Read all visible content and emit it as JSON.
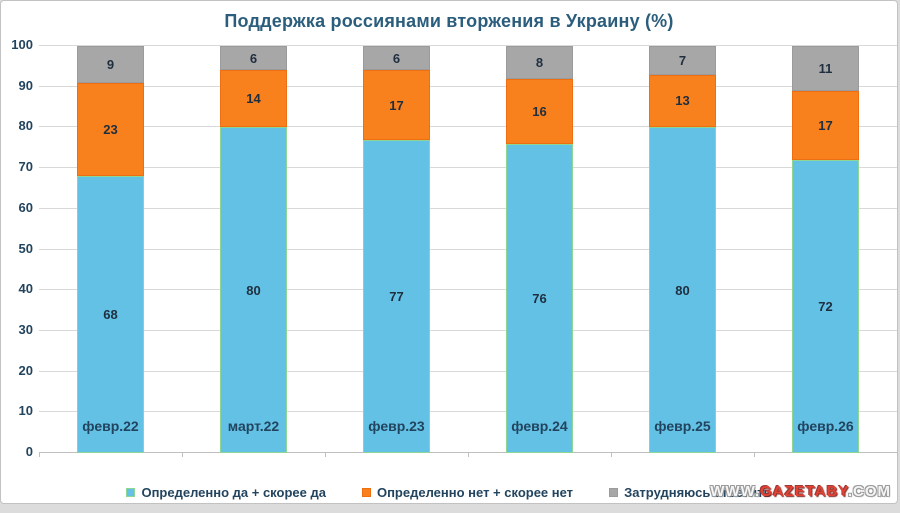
{
  "chart_data": {
    "type": "bar",
    "stacked": true,
    "title": "Поддержка россиянами вторжения в Украину (%)",
    "categories": [
      "февр.22",
      "март.22",
      "февр.23",
      "февр.24",
      "февр.25",
      "февр.26"
    ],
    "series": [
      {
        "name": "Определенно да + скорее да",
        "color": "#63c1e5",
        "border_color": "#8fd694",
        "values": [
          68,
          80,
          77,
          76,
          80,
          72
        ]
      },
      {
        "name": "Определенно нет + скорее нет",
        "color": "#f8801d",
        "border_color": "#ed6f12",
        "values": [
          23,
          14,
          17,
          16,
          13,
          17
        ]
      },
      {
        "name": "Затрудняюсь ответить",
        "color": "#a7a7a7",
        "border_color": "#9b9b9b",
        "values": [
          9,
          6,
          6,
          8,
          7,
          11
        ]
      }
    ],
    "xlabel": "",
    "ylabel": "",
    "ylim": [
      0,
      100
    ],
    "yticks": [
      0,
      10,
      20,
      30,
      40,
      50,
      60,
      70,
      80,
      90,
      100
    ],
    "grid": true,
    "legend_position": "bottom"
  },
  "watermark": {
    "prefix": "WWW.",
    "brand": "GAZETABY",
    "suffix": ".COM",
    "brand_color": "#e34234"
  }
}
